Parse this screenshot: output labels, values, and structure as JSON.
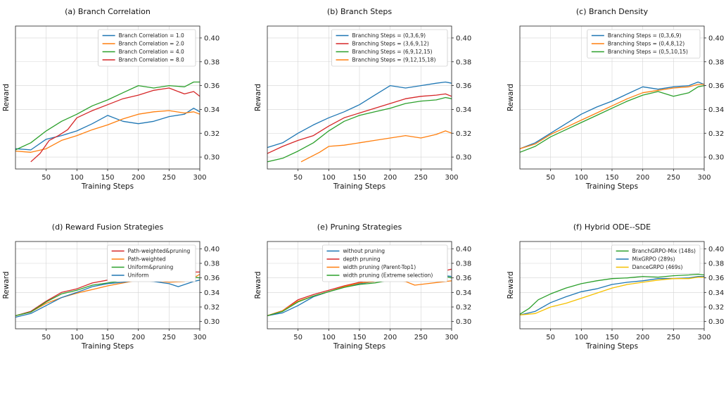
{
  "chart_data": [
    {
      "type": "line",
      "title": "(a) Branch Correlation",
      "xlabel": "Training Steps",
      "ylabel": "Reward",
      "xlim": [
        0,
        300
      ],
      "ylim": [
        0.29,
        0.41
      ],
      "xticks": [
        "50",
        "100",
        "150",
        "200",
        "250",
        "300"
      ],
      "yticks": [
        "0.30",
        "0.32",
        "0.34",
        "0.36",
        "0.38",
        "0.40"
      ],
      "legend_position": "top-right",
      "series": [
        {
          "name": "Branch Correlation = 1.0",
          "color": "#1f77b4",
          "x": [
            0,
            25,
            50,
            75,
            100,
            125,
            150,
            175,
            200,
            225,
            250,
            275,
            290,
            300
          ],
          "y": [
            0.307,
            0.306,
            0.315,
            0.318,
            0.322,
            0.328,
            0.335,
            0.33,
            0.328,
            0.33,
            0.334,
            0.336,
            0.341,
            0.338
          ]
        },
        {
          "name": "Branch Correlation = 2.0",
          "color": "#ff7f0e",
          "x": [
            0,
            25,
            50,
            75,
            100,
            125,
            150,
            175,
            200,
            225,
            250,
            275,
            290,
            300
          ],
          "y": [
            0.305,
            0.304,
            0.307,
            0.314,
            0.318,
            0.323,
            0.327,
            0.332,
            0.336,
            0.338,
            0.339,
            0.337,
            0.338,
            0.336
          ]
        },
        {
          "name": "Branch Correlation = 4.0",
          "color": "#2ca02c",
          "x": [
            0,
            25,
            50,
            75,
            100,
            125,
            150,
            175,
            200,
            225,
            250,
            275,
            290,
            300
          ],
          "y": [
            0.306,
            0.312,
            0.322,
            0.33,
            0.336,
            0.343,
            0.348,
            0.354,
            0.36,
            0.358,
            0.36,
            0.359,
            0.363,
            0.363
          ]
        },
        {
          "name": "Branch Correlation = 8.0",
          "color": "#d62728",
          "x": [
            25,
            40,
            55,
            70,
            85,
            100,
            125,
            150,
            175,
            200,
            225,
            250,
            275,
            290,
            300
          ],
          "y": [
            0.296,
            0.303,
            0.314,
            0.318,
            0.323,
            0.333,
            0.339,
            0.344,
            0.349,
            0.352,
            0.356,
            0.358,
            0.353,
            0.355,
            0.351
          ]
        }
      ]
    },
    {
      "type": "line",
      "title": "(b) Branch Steps",
      "xlabel": "Training Steps",
      "ylabel": "Reward",
      "xlim": [
        0,
        300
      ],
      "ylim": [
        0.29,
        0.41
      ],
      "xticks": [
        "50",
        "100",
        "150",
        "200",
        "250",
        "300"
      ],
      "yticks": [
        "0.30",
        "0.32",
        "0.34",
        "0.36",
        "0.38",
        "0.40"
      ],
      "legend_position": "top-right",
      "series": [
        {
          "name": "Branching Steps = (0,3,6,9)",
          "color": "#1f77b4",
          "x": [
            0,
            25,
            50,
            75,
            100,
            125,
            150,
            175,
            200,
            225,
            250,
            275,
            290,
            300
          ],
          "y": [
            0.308,
            0.312,
            0.32,
            0.327,
            0.333,
            0.338,
            0.344,
            0.352,
            0.36,
            0.358,
            0.36,
            0.362,
            0.363,
            0.362
          ]
        },
        {
          "name": "Branching Steps = (3,6,9,12)",
          "color": "#d62728",
          "x": [
            0,
            25,
            50,
            75,
            100,
            125,
            150,
            175,
            200,
            225,
            250,
            275,
            290,
            300
          ],
          "y": [
            0.303,
            0.309,
            0.314,
            0.318,
            0.326,
            0.333,
            0.337,
            0.341,
            0.345,
            0.349,
            0.351,
            0.352,
            0.353,
            0.351
          ]
        },
        {
          "name": "Branching Steps = (6,9,12,15)",
          "color": "#2ca02c",
          "x": [
            0,
            25,
            50,
            75,
            100,
            125,
            150,
            175,
            200,
            225,
            250,
            275,
            290,
            300
          ],
          "y": [
            0.296,
            0.299,
            0.305,
            0.312,
            0.322,
            0.33,
            0.335,
            0.338,
            0.341,
            0.345,
            0.347,
            0.348,
            0.35,
            0.349
          ]
        },
        {
          "name": "Branching Steps = (9,12,15,18)",
          "color": "#ff7f0e",
          "x": [
            55,
            70,
            85,
            100,
            125,
            150,
            175,
            200,
            225,
            250,
            275,
            290,
            300
          ],
          "y": [
            0.296,
            0.3,
            0.304,
            0.309,
            0.31,
            0.312,
            0.314,
            0.316,
            0.318,
            0.316,
            0.319,
            0.322,
            0.32
          ]
        }
      ]
    },
    {
      "type": "line",
      "title": "(c) Branch Density",
      "xlabel": "Training Steps",
      "ylabel": "Reward",
      "xlim": [
        0,
        300
      ],
      "ylim": [
        0.29,
        0.41
      ],
      "xticks": [
        "50",
        "100",
        "150",
        "200",
        "250",
        "300"
      ],
      "yticks": [
        "0.30",
        "0.32",
        "0.34",
        "0.36",
        "0.38",
        "0.40"
      ],
      "legend_position": "top-right",
      "series": [
        {
          "name": "Branching Steps = (0,3,6,9)",
          "color": "#1f77b4",
          "x": [
            0,
            25,
            50,
            75,
            100,
            125,
            150,
            175,
            200,
            225,
            250,
            275,
            290,
            300
          ],
          "y": [
            0.307,
            0.312,
            0.32,
            0.328,
            0.336,
            0.342,
            0.347,
            0.353,
            0.359,
            0.357,
            0.359,
            0.36,
            0.363,
            0.361
          ]
        },
        {
          "name": "Branching Steps = (0,4,8,12)",
          "color": "#ff7f0e",
          "x": [
            0,
            25,
            50,
            75,
            100,
            125,
            150,
            175,
            200,
            225,
            250,
            275,
            290,
            300
          ],
          "y": [
            0.307,
            0.311,
            0.319,
            0.325,
            0.331,
            0.337,
            0.343,
            0.349,
            0.354,
            0.356,
            0.358,
            0.359,
            0.361,
            0.361
          ]
        },
        {
          "name": "Branching Steps = (0,5,10,15)",
          "color": "#2ca02c",
          "x": [
            0,
            25,
            50,
            75,
            100,
            125,
            150,
            175,
            200,
            225,
            250,
            275,
            290,
            300
          ],
          "y": [
            0.304,
            0.309,
            0.317,
            0.323,
            0.329,
            0.335,
            0.341,
            0.347,
            0.352,
            0.355,
            0.351,
            0.354,
            0.359,
            0.36
          ]
        }
      ]
    },
    {
      "type": "line",
      "title": "(d) Reward Fusion Strategies",
      "xlabel": "Training Steps",
      "ylabel": "Reward",
      "xlim": [
        0,
        300
      ],
      "ylim": [
        0.29,
        0.41
      ],
      "xticks": [
        "50",
        "100",
        "150",
        "200",
        "250",
        "300"
      ],
      "yticks": [
        "0.30",
        "0.32",
        "0.34",
        "0.36",
        "0.38",
        "0.40"
      ],
      "legend_position": "top-right",
      "series": [
        {
          "name": "Path-weighted&pruning",
          "color": "#d62728",
          "x": [
            0,
            25,
            50,
            75,
            100,
            125,
            150,
            175,
            200,
            225,
            250,
            275,
            290,
            300
          ],
          "y": [
            0.308,
            0.314,
            0.328,
            0.34,
            0.345,
            0.353,
            0.357,
            0.358,
            0.362,
            0.363,
            0.364,
            0.365,
            0.368,
            0.368
          ]
        },
        {
          "name": "Path-weighted",
          "color": "#ff7f0e",
          "x": [
            0,
            25,
            50,
            75,
            100,
            125,
            150,
            175,
            200,
            225,
            250,
            275,
            290,
            300
          ],
          "y": [
            0.308,
            0.313,
            0.325,
            0.333,
            0.339,
            0.344,
            0.349,
            0.353,
            0.357,
            0.356,
            0.354,
            0.355,
            0.36,
            0.365
          ]
        },
        {
          "name": "Uniform&pruning",
          "color": "#2ca02c",
          "x": [
            0,
            25,
            50,
            75,
            100,
            125,
            150,
            175,
            200,
            225,
            250,
            275,
            290,
            300
          ],
          "y": [
            0.308,
            0.313,
            0.327,
            0.338,
            0.343,
            0.35,
            0.353,
            0.356,
            0.36,
            0.36,
            0.358,
            0.357,
            0.361,
            0.36
          ]
        },
        {
          "name": "Uniform",
          "color": "#1f77b4",
          "x": [
            0,
            25,
            50,
            75,
            100,
            125,
            150,
            175,
            200,
            225,
            250,
            265,
            290,
            300
          ],
          "y": [
            0.306,
            0.311,
            0.322,
            0.333,
            0.34,
            0.348,
            0.352,
            0.354,
            0.357,
            0.355,
            0.352,
            0.348,
            0.355,
            0.357
          ]
        }
      ]
    },
    {
      "type": "line",
      "title": "(e) Pruning Strategies",
      "xlabel": "Training Steps",
      "ylabel": "Reward",
      "xlim": [
        0,
        300
      ],
      "ylim": [
        0.29,
        0.41
      ],
      "xticks": [
        "50",
        "100",
        "150",
        "200",
        "250",
        "300"
      ],
      "yticks": [
        "0.30",
        "0.32",
        "0.34",
        "0.36",
        "0.38",
        "0.40"
      ],
      "legend_position": "top-right",
      "series": [
        {
          "name": "without pruning",
          "color": "#1f77b4",
          "x": [
            0,
            25,
            50,
            75,
            100,
            125,
            150,
            175,
            200,
            225,
            250,
            275,
            290,
            300
          ],
          "y": [
            0.308,
            0.312,
            0.322,
            0.334,
            0.341,
            0.347,
            0.352,
            0.355,
            0.358,
            0.36,
            0.361,
            0.361,
            0.363,
            0.362
          ]
        },
        {
          "name": "depth pruning",
          "color": "#d62728",
          "x": [
            0,
            25,
            50,
            75,
            100,
            125,
            150,
            175,
            200,
            225,
            250,
            275,
            290,
            300
          ],
          "y": [
            0.308,
            0.315,
            0.33,
            0.337,
            0.343,
            0.349,
            0.354,
            0.357,
            0.36,
            0.364,
            0.367,
            0.367,
            0.37,
            0.372
          ]
        },
        {
          "name": "width pruning (Parent-Top1)",
          "color": "#ff7f0e",
          "x": [
            0,
            25,
            50,
            75,
            100,
            125,
            150,
            175,
            200,
            225,
            240,
            260,
            290,
            300
          ],
          "y": [
            0.308,
            0.315,
            0.328,
            0.335,
            0.341,
            0.348,
            0.353,
            0.355,
            0.358,
            0.355,
            0.35,
            0.352,
            0.355,
            0.356
          ]
        },
        {
          "name": "width pruning (Extreme selection)",
          "color": "#2ca02c",
          "x": [
            0,
            25,
            50,
            75,
            100,
            125,
            150,
            175,
            200,
            225,
            250,
            275,
            290,
            300
          ],
          "y": [
            0.308,
            0.314,
            0.327,
            0.335,
            0.341,
            0.347,
            0.351,
            0.353,
            0.357,
            0.357,
            0.356,
            0.359,
            0.362,
            0.36
          ]
        }
      ]
    },
    {
      "type": "line",
      "title": "(f) Hybrid ODE--SDE",
      "xlabel": "Training Steps",
      "ylabel": "Reward",
      "xlim": [
        0,
        300
      ],
      "ylim": [
        0.29,
        0.41
      ],
      "xticks": [
        "50",
        "100",
        "150",
        "200",
        "250",
        "300"
      ],
      "yticks": [
        "0.30",
        "0.32",
        "0.34",
        "0.36",
        "0.38",
        "0.40"
      ],
      "legend_position": "top-right",
      "series": [
        {
          "name": "BranchGRPO-Mix (148s)",
          "color": "#2ca02c",
          "x": [
            0,
            15,
            30,
            50,
            75,
            100,
            125,
            150,
            175,
            200,
            225,
            250,
            275,
            290,
            300
          ],
          "y": [
            0.31,
            0.318,
            0.33,
            0.338,
            0.346,
            0.352,
            0.356,
            0.359,
            0.36,
            0.362,
            0.361,
            0.363,
            0.364,
            0.365,
            0.364
          ]
        },
        {
          "name": "MixGRPO (289s)",
          "color": "#1f77b4",
          "x": [
            0,
            25,
            50,
            75,
            100,
            125,
            150,
            175,
            200,
            225,
            250,
            275,
            290,
            300
          ],
          "y": [
            0.309,
            0.314,
            0.326,
            0.334,
            0.341,
            0.345,
            0.351,
            0.354,
            0.356,
            0.359,
            0.359,
            0.36,
            0.362,
            0.362
          ]
        },
        {
          "name": "DanceGRPO (469s)",
          "color": "#f5c000",
          "x": [
            0,
            25,
            50,
            75,
            100,
            125,
            150,
            175,
            200,
            225,
            250,
            275,
            290,
            300
          ],
          "y": [
            0.309,
            0.311,
            0.32,
            0.325,
            0.332,
            0.339,
            0.346,
            0.351,
            0.354,
            0.357,
            0.359,
            0.359,
            0.361,
            0.361
          ]
        }
      ]
    }
  ]
}
